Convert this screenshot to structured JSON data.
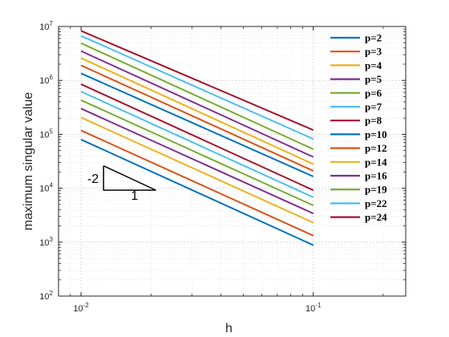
{
  "chart_data": {
    "type": "line",
    "x_scale": "log",
    "y_scale": "log",
    "xlabel": "h",
    "ylabel": "maximum singular value",
    "xlim": [
      0.008,
      0.25
    ],
    "ylim": [
      100,
      10000000
    ],
    "x_ticks": [
      {
        "value": 0.01,
        "base": "10",
        "exp": "-2"
      },
      {
        "value": 0.1,
        "base": "10",
        "exp": "-1"
      }
    ],
    "y_ticks": [
      {
        "value": 100,
        "base": "10",
        "exp": "2"
      },
      {
        "value": 1000,
        "base": "10",
        "exp": "3"
      },
      {
        "value": 10000,
        "base": "10",
        "exp": "4"
      },
      {
        "value": 100000,
        "base": "10",
        "exp": "5"
      },
      {
        "value": 1000000,
        "base": "10",
        "exp": "6"
      },
      {
        "value": 10000000,
        "base": "10",
        "exp": "7"
      }
    ],
    "grid": true,
    "minor_grid": true,
    "legend_position": "top-right",
    "x": [
      0.01,
      0.1
    ],
    "series": [
      {
        "name": "p=2",
        "color": "#0072BD",
        "values": [
          80000,
          880
        ]
      },
      {
        "name": "p=3",
        "color": "#D95319",
        "values": [
          118000,
          1320
        ]
      },
      {
        "name": "p=4",
        "color": "#EDB120",
        "values": [
          205000,
          2300
        ]
      },
      {
        "name": "p=5",
        "color": "#7E2F8E",
        "values": [
          300000,
          3400
        ]
      },
      {
        "name": "p=6",
        "color": "#77AC30",
        "values": [
          430000,
          4800
        ]
      },
      {
        "name": "p=7",
        "color": "#4DBEEE",
        "values": [
          620000,
          6800
        ]
      },
      {
        "name": "p=8",
        "color": "#A2142F",
        "values": [
          850000,
          9200
        ]
      },
      {
        "name": "p=10",
        "color": "#0072BD",
        "values": [
          1350000,
          16500
        ]
      },
      {
        "name": "p=12",
        "color": "#D95319",
        "values": [
          1900000,
          21000
        ]
      },
      {
        "name": "p=14",
        "color": "#EDB120",
        "values": [
          2600000,
          28000
        ]
      },
      {
        "name": "p=16",
        "color": "#7E2F8E",
        "values": [
          3500000,
          38000
        ]
      },
      {
        "name": "p=19",
        "color": "#77AC30",
        "values": [
          4900000,
          53000
        ]
      },
      {
        "name": "p=22",
        "color": "#4DBEEE",
        "values": [
          6700000,
          82000
        ]
      },
      {
        "name": "p=24",
        "color": "#A2142F",
        "values": [
          8300000,
          120000
        ]
      }
    ],
    "slope_annotation": {
      "slope_label": "-2",
      "run_label": "1"
    }
  }
}
